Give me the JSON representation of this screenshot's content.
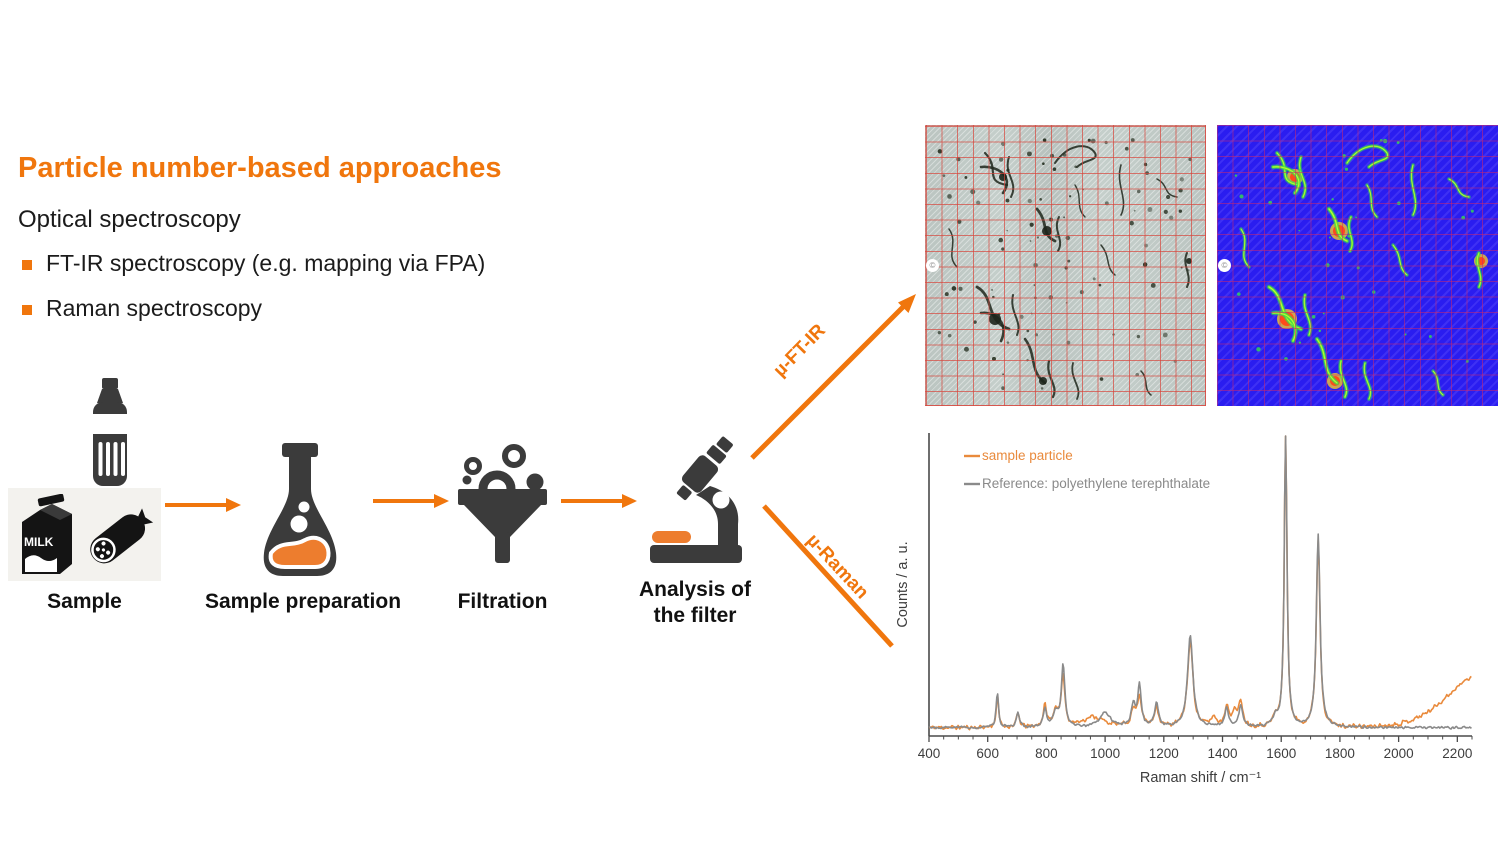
{
  "accent": "#f0760d",
  "title": "Particle number-based approaches",
  "subtitle": "Optical spectroscopy",
  "bullets": [
    "FT-IR spectroscopy (e.g. mapping via FPA)",
    "Raman spectroscopy"
  ],
  "workflow": {
    "steps": [
      {
        "label": "Sample"
      },
      {
        "label": "Sample preparation"
      },
      {
        "label": "Filtration"
      },
      {
        "label": "Analysis of\nthe filter"
      }
    ],
    "milk_text": "MILK",
    "branch_top": "µ-FT-IR",
    "branch_bottom": "µ-Raman",
    "icons": [
      "bottle",
      "milk-carton",
      "salami",
      "flask",
      "funnel",
      "microscope",
      "arrow-right",
      "diagonal-arrow"
    ]
  },
  "images": {
    "copyright_mark": "©",
    "left_panel": "micrograph of filter with red measurement grid and particles/fibres",
    "right_panel": "false-colour FPA chemical image of same filter (blue background, green/red particles)"
  },
  "chart_data": {
    "type": "line",
    "title": "",
    "xlabel": "Raman shift / cm⁻¹",
    "ylabel": "Counts / a. u.",
    "xlim": [
      400,
      2250
    ],
    "ylim": [
      0,
      1
    ],
    "x_major_ticks": [
      400,
      600,
      800,
      1000,
      1200,
      1400,
      1600,
      1800,
      2000,
      2200
    ],
    "x_minor_step": 50,
    "grid": false,
    "legend_position": "top-left",
    "baseline": 0.018,
    "peak_format": "[center_cm-1, relative_height, lorentzian_halfwidth_cm-1]",
    "series": [
      {
        "name": "sample particle",
        "color": "#e98a3c",
        "peaks": [
          [
            633,
            0.1,
            5
          ],
          [
            703,
            0.045,
            6
          ],
          [
            795,
            0.07,
            7
          ],
          [
            832,
            0.055,
            10
          ],
          [
            857,
            0.17,
            7
          ],
          [
            960,
            0.035,
            45
          ],
          [
            1096,
            0.05,
            9
          ],
          [
            1117,
            0.1,
            9
          ],
          [
            1175,
            0.07,
            8
          ],
          [
            1290,
            0.29,
            11
          ],
          [
            1370,
            0.03,
            12
          ],
          [
            1414,
            0.07,
            8
          ],
          [
            1440,
            0.05,
            8
          ],
          [
            1462,
            0.09,
            8
          ],
          [
            1580,
            0.03,
            10
          ],
          [
            1615,
            1.0,
            5.5
          ],
          [
            1726,
            0.63,
            7.5
          ]
        ],
        "fluorescence_background": {
          "amplitude": 0.22,
          "center": 2170,
          "width": 62
        },
        "noise": 0.009
      },
      {
        "name": "Reference: polyethylene terephthalate",
        "color": "#8a8a8a",
        "peaks": [
          [
            633,
            0.115,
            5
          ],
          [
            703,
            0.05,
            6
          ],
          [
            795,
            0.06,
            7
          ],
          [
            832,
            0.05,
            10
          ],
          [
            857,
            0.21,
            7
          ],
          [
            1000,
            0.05,
            22
          ],
          [
            1096,
            0.07,
            9
          ],
          [
            1117,
            0.14,
            7
          ],
          [
            1175,
            0.08,
            8
          ],
          [
            1290,
            0.31,
            11
          ],
          [
            1414,
            0.06,
            8
          ],
          [
            1462,
            0.07,
            8
          ],
          [
            1580,
            0.03,
            10
          ],
          [
            1615,
            1.0,
            5.5
          ],
          [
            1726,
            0.65,
            7.5
          ]
        ],
        "noise": 0.005
      }
    ]
  }
}
